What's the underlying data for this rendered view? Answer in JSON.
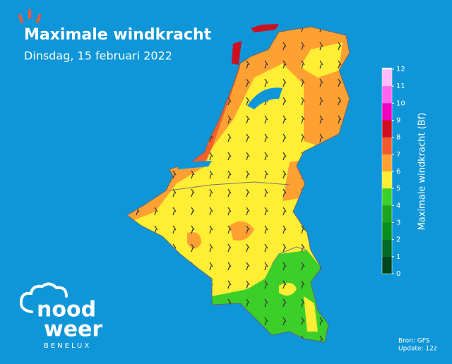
{
  "header": {
    "title": "Maximale windkracht",
    "subtitle": "Dinsdag, 15 februari 2022"
  },
  "legend": {
    "label": "Maximale windkracht (Bf)",
    "ticks": [
      0,
      1,
      2,
      3,
      4,
      5,
      6,
      7,
      8,
      9,
      10,
      11,
      12
    ],
    "colors": [
      "#00461a",
      "#006b24",
      "#0a8f1e",
      "#1fa31f",
      "#3ccf2a",
      "#ffee33",
      "#ffa033",
      "#f05a2c",
      "#cc1022",
      "#f000c0",
      "#ff66ee",
      "#ffbbff"
    ]
  },
  "footer": {
    "source": "Bron: GFS",
    "update": "Update: 12z"
  },
  "logo": {
    "line1": "nood",
    "line2": "weer",
    "line3": "BENELUX"
  }
}
